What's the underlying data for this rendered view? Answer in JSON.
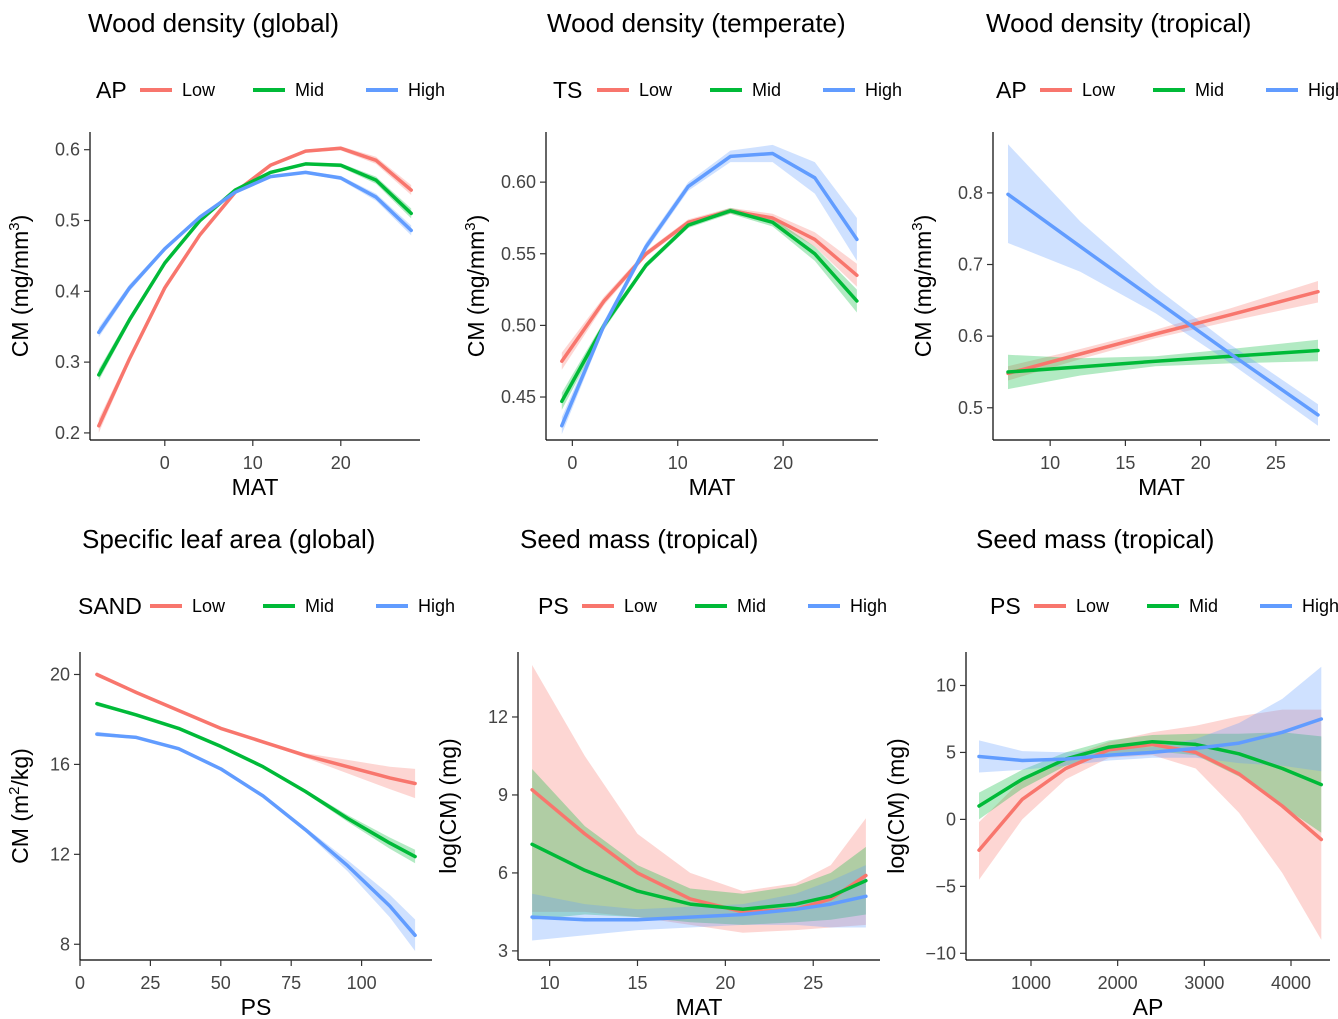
{
  "chart_data": [
    {
      "type": "line",
      "title": "Wood density (global)",
      "xlabel": "MAT",
      "ylabel": "CM (mg/mm³)",
      "legend_title": "AP",
      "legend_placement": "top",
      "xlim": [
        -8.5,
        29
      ],
      "ylim": [
        0.19,
        0.625
      ],
      "xticks": [
        0,
        10,
        20
      ],
      "yticks": [
        0.2,
        0.3,
        0.4,
        0.5,
        0.6
      ],
      "ytick_labels": [
        "0.2",
        "0.3",
        "0.4",
        "0.5",
        "0.6"
      ],
      "grid": false,
      "series": [
        {
          "name": "Low",
          "color": "#F8766D",
          "x": [
            -7.5,
            -4,
            0,
            4,
            8,
            12,
            16,
            20,
            24,
            28
          ],
          "y": [
            0.21,
            0.305,
            0.405,
            0.48,
            0.54,
            0.578,
            0.598,
            0.602,
            0.585,
            0.543
          ],
          "lower": [
            0.2,
            0.3,
            0.4,
            0.477,
            0.537,
            0.576,
            0.596,
            0.599,
            0.58,
            0.536
          ],
          "upper": [
            0.22,
            0.31,
            0.41,
            0.483,
            0.543,
            0.58,
            0.6,
            0.605,
            0.59,
            0.55
          ]
        },
        {
          "name": "Mid",
          "color": "#00BA38",
          "x": [
            -7.5,
            -4,
            0,
            4,
            8,
            12,
            16,
            20,
            24,
            28
          ],
          "y": [
            0.282,
            0.36,
            0.44,
            0.5,
            0.543,
            0.568,
            0.58,
            0.578,
            0.557,
            0.51
          ],
          "lower": [
            0.274,
            0.355,
            0.436,
            0.497,
            0.541,
            0.566,
            0.578,
            0.575,
            0.552,
            0.503
          ],
          "upper": [
            0.29,
            0.365,
            0.444,
            0.503,
            0.545,
            0.57,
            0.582,
            0.581,
            0.562,
            0.517
          ]
        },
        {
          "name": "High",
          "color": "#619CFF",
          "x": [
            -7.5,
            -4,
            0,
            4,
            8,
            12,
            16,
            20,
            24,
            28
          ],
          "y": [
            0.342,
            0.405,
            0.46,
            0.505,
            0.54,
            0.562,
            0.568,
            0.56,
            0.533,
            0.486
          ],
          "lower": [
            0.335,
            0.4,
            0.457,
            0.502,
            0.538,
            0.56,
            0.566,
            0.557,
            0.528,
            0.479
          ],
          "upper": [
            0.349,
            0.41,
            0.463,
            0.508,
            0.542,
            0.564,
            0.57,
            0.563,
            0.538,
            0.493
          ]
        }
      ]
    },
    {
      "type": "line",
      "title": "Wood density (temperate)",
      "xlabel": "MAT",
      "ylabel": "CM (mg/mm³)",
      "legend_title": "TS",
      "legend_placement": "top",
      "xlim": [
        -2.5,
        29
      ],
      "ylim": [
        0.42,
        0.635
      ],
      "xticks": [
        0,
        10,
        20
      ],
      "yticks": [
        0.45,
        0.5,
        0.55,
        0.6
      ],
      "ytick_labels": [
        "0.45",
        "0.50",
        "0.55",
        "0.60"
      ],
      "grid": false,
      "series": [
        {
          "name": "Low",
          "color": "#F8766D",
          "x": [
            -1,
            3,
            7,
            11,
            15,
            19,
            23,
            27
          ],
          "y": [
            0.475,
            0.517,
            0.55,
            0.572,
            0.58,
            0.575,
            0.56,
            0.535
          ],
          "lower": [
            0.469,
            0.514,
            0.548,
            0.57,
            0.578,
            0.572,
            0.555,
            0.527
          ],
          "upper": [
            0.481,
            0.52,
            0.552,
            0.574,
            0.582,
            0.578,
            0.565,
            0.543
          ]
        },
        {
          "name": "Mid",
          "color": "#00BA38",
          "x": [
            -1,
            3,
            7,
            11,
            15,
            19,
            23,
            27
          ],
          "y": [
            0.447,
            0.5,
            0.542,
            0.57,
            0.58,
            0.572,
            0.55,
            0.517
          ],
          "lower": [
            0.441,
            0.497,
            0.54,
            0.568,
            0.578,
            0.569,
            0.545,
            0.509
          ],
          "upper": [
            0.453,
            0.503,
            0.544,
            0.572,
            0.582,
            0.575,
            0.555,
            0.525
          ]
        },
        {
          "name": "High",
          "color": "#619CFF",
          "x": [
            -1,
            3,
            7,
            11,
            15,
            19,
            23,
            27
          ],
          "y": [
            0.43,
            0.5,
            0.555,
            0.597,
            0.618,
            0.62,
            0.603,
            0.56
          ],
          "lower": [
            0.424,
            0.497,
            0.552,
            0.594,
            0.614,
            0.614,
            0.592,
            0.545
          ],
          "upper": [
            0.436,
            0.503,
            0.558,
            0.6,
            0.622,
            0.626,
            0.614,
            0.575
          ]
        }
      ]
    },
    {
      "type": "line",
      "title": "Wood density (tropical)",
      "xlabel": "MAT",
      "ylabel": "CM (mg/mm³)",
      "legend_title": "AP",
      "legend_placement": "top",
      "xlim": [
        6.2,
        28.6
      ],
      "ylim": [
        0.455,
        0.885
      ],
      "xticks": [
        10,
        15,
        20,
        25
      ],
      "yticks": [
        0.5,
        0.6,
        0.7,
        0.8
      ],
      "ytick_labels": [
        "0.5",
        "0.6",
        "0.7",
        "0.8"
      ],
      "grid": false,
      "series": [
        {
          "name": "Low",
          "color": "#F8766D",
          "x": [
            7.2,
            12,
            17,
            22,
            27.8
          ],
          "y": [
            0.548,
            0.575,
            0.603,
            0.63,
            0.662
          ],
          "lower": [
            0.538,
            0.568,
            0.597,
            0.621,
            0.647
          ],
          "upper": [
            0.558,
            0.582,
            0.609,
            0.639,
            0.677
          ]
        },
        {
          "name": "Mid",
          "color": "#00BA38",
          "x": [
            7.2,
            12,
            17,
            22,
            27.8
          ],
          "y": [
            0.55,
            0.557,
            0.565,
            0.572,
            0.58
          ],
          "lower": [
            0.526,
            0.545,
            0.558,
            0.562,
            0.565
          ],
          "upper": [
            0.574,
            0.569,
            0.572,
            0.582,
            0.595
          ]
        },
        {
          "name": "High",
          "color": "#619CFF",
          "x": [
            7.2,
            12,
            17,
            22,
            27.8
          ],
          "y": [
            0.798,
            0.725,
            0.65,
            0.575,
            0.49
          ],
          "lower": [
            0.73,
            0.69,
            0.632,
            0.562,
            0.475
          ],
          "upper": [
            0.868,
            0.76,
            0.668,
            0.588,
            0.505
          ]
        }
      ]
    },
    {
      "type": "line",
      "title": "Specific leaf area (global)",
      "xlabel": "PS",
      "ylabel": "CM (m²/kg)",
      "legend_title": "SAND",
      "legend_placement": "top",
      "xlim": [
        0,
        125
      ],
      "ylim": [
        7.3,
        21
      ],
      "xticks": [
        0,
        25,
        50,
        75,
        100
      ],
      "yticks": [
        8,
        12,
        16,
        20
      ],
      "ytick_labels": [
        "8",
        "12",
        "16",
        "20"
      ],
      "grid": false,
      "series": [
        {
          "name": "Low",
          "color": "#F8766D",
          "x": [
            6,
            20,
            35,
            50,
            65,
            80,
            95,
            110,
            119
          ],
          "y": [
            20.0,
            19.2,
            18.4,
            17.6,
            17.0,
            16.4,
            15.9,
            15.4,
            15.15
          ],
          "lower": [
            19.9,
            19.15,
            18.35,
            17.55,
            16.95,
            16.3,
            15.6,
            14.9,
            14.5
          ],
          "upper": [
            20.1,
            19.25,
            18.45,
            17.65,
            17.05,
            16.5,
            16.2,
            15.9,
            15.8
          ]
        },
        {
          "name": "Mid",
          "color": "#00BA38",
          "x": [
            6,
            20,
            35,
            50,
            65,
            80,
            95,
            110,
            119
          ],
          "y": [
            18.7,
            18.2,
            17.6,
            16.8,
            15.9,
            14.8,
            13.6,
            12.5,
            11.9
          ],
          "lower": [
            18.6,
            18.15,
            17.55,
            16.75,
            15.85,
            14.72,
            13.45,
            12.25,
            11.6
          ],
          "upper": [
            18.8,
            18.25,
            17.65,
            16.85,
            15.95,
            14.88,
            13.75,
            12.75,
            12.2
          ]
        },
        {
          "name": "High",
          "color": "#619CFF",
          "x": [
            6,
            20,
            35,
            50,
            65,
            80,
            95,
            110,
            119
          ],
          "y": [
            17.35,
            17.2,
            16.7,
            15.8,
            14.6,
            13.1,
            11.5,
            9.7,
            8.4
          ],
          "lower": [
            17.25,
            17.15,
            16.65,
            15.75,
            14.55,
            13.0,
            11.25,
            9.2,
            7.7
          ],
          "upper": [
            17.45,
            17.25,
            16.75,
            15.85,
            14.65,
            13.2,
            11.75,
            10.2,
            9.1
          ]
        }
      ]
    },
    {
      "type": "line",
      "title": "Seed mass (tropical)",
      "xlabel": "MAT",
      "ylabel": "log(CM) (mg)",
      "legend_title": "PS",
      "legend_placement": "top",
      "xlim": [
        8.2,
        28.8
      ],
      "ylim": [
        2.65,
        14.5
      ],
      "xticks": [
        10,
        15,
        20,
        25
      ],
      "yticks": [
        3,
        6,
        9,
        12
      ],
      "ytick_labels": [
        "3",
        "6",
        "9",
        "12"
      ],
      "grid": false,
      "series": [
        {
          "name": "Low",
          "color": "#F8766D",
          "x": [
            9,
            12,
            15,
            18,
            21,
            24,
            26,
            28
          ],
          "y": [
            9.2,
            7.5,
            6.0,
            5.0,
            4.5,
            4.6,
            5.0,
            5.9
          ],
          "lower": [
            4.5,
            4.5,
            4.3,
            4.0,
            3.7,
            3.8,
            3.9,
            4.0
          ],
          "upper": [
            14.0,
            10.5,
            7.5,
            6.0,
            5.3,
            5.6,
            6.3,
            8.1
          ]
        },
        {
          "name": "Mid",
          "color": "#00BA38",
          "x": [
            9,
            12,
            15,
            18,
            21,
            24,
            26,
            28
          ],
          "y": [
            7.1,
            6.1,
            5.3,
            4.8,
            4.6,
            4.8,
            5.1,
            5.7
          ],
          "lower": [
            4.2,
            4.4,
            4.3,
            4.1,
            4.0,
            4.1,
            4.2,
            4.4
          ],
          "upper": [
            10.0,
            7.8,
            6.3,
            5.4,
            5.2,
            5.5,
            6.0,
            7.0
          ]
        },
        {
          "name": "High",
          "color": "#619CFF",
          "x": [
            9,
            12,
            15,
            18,
            21,
            24,
            26,
            28
          ],
          "y": [
            4.3,
            4.2,
            4.2,
            4.3,
            4.4,
            4.6,
            4.8,
            5.1
          ],
          "lower": [
            3.4,
            3.6,
            3.8,
            3.9,
            4.0,
            4.0,
            3.9,
            3.9
          ],
          "upper": [
            5.2,
            4.8,
            4.6,
            4.7,
            4.8,
            5.2,
            5.7,
            6.3
          ]
        }
      ]
    },
    {
      "type": "line",
      "title": "Seed mass (tropical)",
      "xlabel": "AP",
      "ylabel": "log(CM) (mg)",
      "legend_title": "PS",
      "legend_placement": "top",
      "xlim": [
        250,
        4450
      ],
      "ylim": [
        -10.5,
        12.5
      ],
      "xticks": [
        1000,
        2000,
        3000,
        4000
      ],
      "yticks": [
        -10,
        -5,
        0,
        5,
        10
      ],
      "ytick_labels": [
        "−10",
        "−5",
        "0",
        "5",
        "10"
      ],
      "grid": false,
      "series": [
        {
          "name": "Low",
          "color": "#F8766D",
          "x": [
            400,
            900,
            1400,
            1900,
            2400,
            2900,
            3400,
            3900,
            4350
          ],
          "y": [
            -2.3,
            1.5,
            3.8,
            5.2,
            5.6,
            5.0,
            3.4,
            1.0,
            -1.5
          ],
          "lower": [
            -4.5,
            0.0,
            3.0,
            4.6,
            4.8,
            3.8,
            0.5,
            -4.0,
            -9.0
          ],
          "upper": [
            -0.2,
            3.0,
            4.6,
            5.8,
            6.5,
            7.0,
            7.7,
            8.2,
            8.2
          ]
        },
        {
          "name": "Mid",
          "color": "#00BA38",
          "x": [
            400,
            900,
            1400,
            1900,
            2400,
            2900,
            3400,
            3900,
            4350
          ],
          "y": [
            1.0,
            3.0,
            4.5,
            5.4,
            5.8,
            5.6,
            4.9,
            3.8,
            2.6
          ],
          "lower": [
            0.0,
            2.3,
            4.0,
            4.9,
            5.1,
            4.8,
            3.2,
            1.0,
            -1.0
          ],
          "upper": [
            2.0,
            3.7,
            5.0,
            5.9,
            6.3,
            6.4,
            6.4,
            6.5,
            6.2
          ]
        },
        {
          "name": "High",
          "color": "#619CFF",
          "x": [
            400,
            900,
            1400,
            1900,
            2400,
            2900,
            3400,
            3900,
            4350
          ],
          "y": [
            4.7,
            4.4,
            4.5,
            4.8,
            5.0,
            5.3,
            5.7,
            6.5,
            7.5
          ],
          "lower": [
            3.5,
            3.7,
            4.0,
            4.4,
            4.6,
            4.6,
            4.2,
            4.0,
            3.6
          ],
          "upper": [
            5.9,
            5.1,
            5.0,
            5.2,
            5.4,
            6.0,
            7.2,
            9.0,
            11.4
          ]
        }
      ]
    }
  ]
}
